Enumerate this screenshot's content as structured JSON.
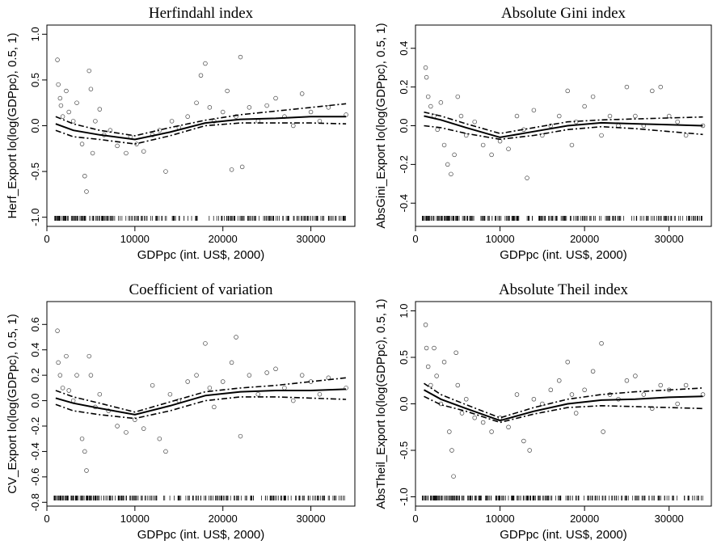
{
  "chart_data": [
    {
      "type": "scatter",
      "title": "Herfindahl index",
      "xlabel": "GDPpc (int. US$, 2000)",
      "ylabel": "Herf_Export lo(log(GDPpc), 0.5, 1)",
      "xlim": [
        0,
        35000
      ],
      "ylim": [
        -1.1,
        1.1
      ],
      "xticks": [
        0,
        10000,
        20000,
        30000
      ],
      "yticks": [
        -1.0,
        -0.5,
        0.0,
        0.5,
        1.0
      ],
      "ytick_labels": [
        "-1.0",
        "-0.5",
        "0.0",
        "0.5",
        "1.0"
      ],
      "series": [
        {
          "style": "solid-line",
          "x": [
            1000,
            3000,
            6000,
            10000,
            14000,
            18000,
            22000,
            26000,
            30000,
            34000
          ],
          "y": [
            0.02,
            -0.05,
            -0.1,
            -0.15,
            -0.07,
            0.03,
            0.07,
            0.08,
            0.1,
            0.1
          ]
        },
        {
          "style": "dashed-upper",
          "x": [
            1000,
            3000,
            6000,
            10000,
            14000,
            18000,
            22000,
            26000,
            30000,
            34000
          ],
          "y": [
            0.1,
            0.02,
            -0.05,
            -0.11,
            -0.02,
            0.06,
            0.12,
            0.16,
            0.2,
            0.24
          ]
        },
        {
          "style": "dashed-lower",
          "x": [
            1000,
            3000,
            6000,
            10000,
            14000,
            18000,
            22000,
            26000,
            30000,
            34000
          ],
          "y": [
            -0.05,
            -0.12,
            -0.15,
            -0.2,
            -0.11,
            0.0,
            0.03,
            0.03,
            0.03,
            0.02
          ]
        }
      ],
      "points": [
        [
          1200,
          0.72
        ],
        [
          1300,
          0.45
        ],
        [
          1500,
          0.3
        ],
        [
          1600,
          0.22
        ],
        [
          1800,
          0.1
        ],
        [
          2200,
          0.38
        ],
        [
          2500,
          0.15
        ],
        [
          3000,
          0.05
        ],
        [
          3400,
          0.25
        ],
        [
          4000,
          -0.2
        ],
        [
          4300,
          -0.55
        ],
        [
          4500,
          -0.72
        ],
        [
          4800,
          0.6
        ],
        [
          5000,
          0.4
        ],
        [
          5200,
          -0.3
        ],
        [
          5500,
          0.05
        ],
        [
          6000,
          0.18
        ],
        [
          6500,
          -0.1
        ],
        [
          7200,
          -0.05
        ],
        [
          8000,
          -0.22
        ],
        [
          9000,
          -0.3
        ],
        [
          9500,
          -0.12
        ],
        [
          10200,
          -0.2
        ],
        [
          11000,
          -0.28
        ],
        [
          12000,
          -0.1
        ],
        [
          12800,
          -0.05
        ],
        [
          13500,
          -0.5
        ],
        [
          14200,
          0.05
        ],
        [
          15000,
          -0.02
        ],
        [
          16000,
          0.1
        ],
        [
          17000,
          0.25
        ],
        [
          17500,
          0.55
        ],
        [
          18000,
          0.68
        ],
        [
          18500,
          0.2
        ],
        [
          19000,
          0.05
        ],
        [
          20000,
          0.15
        ],
        [
          20500,
          0.38
        ],
        [
          21000,
          -0.48
        ],
        [
          21500,
          0.1
        ],
        [
          22000,
          0.75
        ],
        [
          22200,
          -0.45
        ],
        [
          23000,
          0.2
        ],
        [
          24000,
          0.05
        ],
        [
          25000,
          0.22
        ],
        [
          26000,
          0.3
        ],
        [
          27000,
          0.1
        ],
        [
          28000,
          0.0
        ],
        [
          29000,
          0.35
        ],
        [
          30000,
          0.15
        ],
        [
          31000,
          0.05
        ],
        [
          32000,
          0.2
        ],
        [
          34000,
          0.12
        ]
      ],
      "rug": true
    },
    {
      "type": "scatter",
      "title": "Absolute Gini index",
      "xlabel": "GDPpc (int. US$, 2000)",
      "ylabel": "AbsGini_Export lo(log(GDPpc), 0.5, 1)",
      "xlim": [
        0,
        35000
      ],
      "ylim": [
        -0.52,
        0.52
      ],
      "xticks": [
        0,
        10000,
        20000,
        30000
      ],
      "yticks": [
        -0.4,
        -0.2,
        0.0,
        0.2,
        0.4
      ],
      "ytick_labels": [
        "-0.4",
        "-0.2",
        "0.0",
        "0.2",
        "0.4"
      ],
      "series": [
        {
          "style": "solid-line",
          "x": [
            1000,
            3000,
            6000,
            10000,
            14000,
            18000,
            22000,
            26000,
            30000,
            34000
          ],
          "y": [
            0.05,
            0.03,
            -0.01,
            -0.06,
            -0.03,
            0.0,
            0.015,
            0.01,
            0.005,
            0.0
          ]
        },
        {
          "style": "dashed-upper",
          "x": [
            1000,
            3000,
            6000,
            10000,
            14000,
            18000,
            22000,
            26000,
            30000,
            34000
          ],
          "y": [
            0.07,
            0.05,
            0.01,
            -0.04,
            -0.01,
            0.02,
            0.03,
            0.035,
            0.04,
            0.045
          ]
        },
        {
          "style": "dashed-lower",
          "x": [
            1000,
            3000,
            6000,
            10000,
            14000,
            18000,
            22000,
            26000,
            30000,
            34000
          ],
          "y": [
            0.0,
            -0.01,
            -0.04,
            -0.07,
            -0.05,
            -0.02,
            -0.005,
            -0.015,
            -0.03,
            -0.045
          ]
        }
      ],
      "points": [
        [
          1200,
          0.3
        ],
        [
          1300,
          0.25
        ],
        [
          1500,
          0.15
        ],
        [
          1800,
          0.1
        ],
        [
          2200,
          0.05
        ],
        [
          2600,
          -0.02
        ],
        [
          3000,
          0.12
        ],
        [
          3400,
          -0.1
        ],
        [
          3800,
          -0.2
        ],
        [
          4200,
          -0.25
        ],
        [
          4600,
          -0.15
        ],
        [
          5000,
          0.15
        ],
        [
          5400,
          0.05
        ],
        [
          6000,
          -0.05
        ],
        [
          7000,
          0.02
        ],
        [
          8000,
          -0.1
        ],
        [
          9000,
          -0.15
        ],
        [
          10000,
          -0.08
        ],
        [
          11000,
          -0.12
        ],
        [
          12000,
          0.05
        ],
        [
          12800,
          -0.02
        ],
        [
          13200,
          -0.27
        ],
        [
          14000,
          0.08
        ],
        [
          15000,
          -0.05
        ],
        [
          16000,
          0.0
        ],
        [
          17000,
          0.05
        ],
        [
          18000,
          0.18
        ],
        [
          18500,
          -0.1
        ],
        [
          19000,
          0.02
        ],
        [
          20000,
          0.1
        ],
        [
          21000,
          0.15
        ],
        [
          22000,
          -0.05
        ],
        [
          23000,
          0.05
        ],
        [
          24000,
          0.0
        ],
        [
          25000,
          0.2
        ],
        [
          26000,
          0.05
        ],
        [
          27000,
          0.0
        ],
        [
          28000,
          0.18
        ],
        [
          29000,
          0.2
        ],
        [
          30000,
          0.05
        ],
        [
          31000,
          0.02
        ],
        [
          32000,
          -0.05
        ],
        [
          34000,
          0.0
        ]
      ],
      "rug": true
    },
    {
      "type": "scatter",
      "title": "Coefficient of variation",
      "xlabel": "GDPpc (int. US$, 2000)",
      "ylabel": "CV_Export lo(log(GDPpc), 0.5, 1)",
      "xlim": [
        0,
        35000
      ],
      "ylim": [
        -0.83,
        0.78
      ],
      "xticks": [
        0,
        10000,
        20000,
        30000
      ],
      "yticks": [
        -0.8,
        -0.6,
        -0.4,
        -0.2,
        0.0,
        0.2,
        0.4,
        0.6
      ],
      "ytick_labels": [
        "-0.8",
        "-0.6",
        "-0.4",
        "-0.2",
        "0.0",
        "0.2",
        "0.4",
        "0.6"
      ],
      "series": [
        {
          "style": "solid-line",
          "x": [
            1000,
            3000,
            6000,
            10000,
            14000,
            18000,
            22000,
            26000,
            30000,
            34000
          ],
          "y": [
            0.02,
            -0.02,
            -0.06,
            -0.11,
            -0.04,
            0.04,
            0.07,
            0.08,
            0.08,
            0.09
          ]
        },
        {
          "style": "dashed-upper",
          "x": [
            1000,
            3000,
            6000,
            10000,
            14000,
            18000,
            22000,
            26000,
            30000,
            34000
          ],
          "y": [
            0.08,
            0.03,
            -0.02,
            -0.09,
            -0.01,
            0.07,
            0.1,
            0.12,
            0.15,
            0.18
          ]
        },
        {
          "style": "dashed-lower",
          "x": [
            1000,
            3000,
            6000,
            10000,
            14000,
            18000,
            22000,
            26000,
            30000,
            34000
          ],
          "y": [
            -0.03,
            -0.08,
            -0.11,
            -0.14,
            -0.08,
            0.0,
            0.03,
            0.03,
            0.02,
            0.01
          ]
        }
      ],
      "points": [
        [
          1200,
          0.55
        ],
        [
          1300,
          0.3
        ],
        [
          1500,
          0.2
        ],
        [
          1800,
          0.1
        ],
        [
          2200,
          0.35
        ],
        [
          2500,
          0.08
        ],
        [
          3000,
          0.0
        ],
        [
          3400,
          0.2
        ],
        [
          4000,
          -0.3
        ],
        [
          4300,
          -0.4
        ],
        [
          4500,
          -0.55
        ],
        [
          4800,
          0.35
        ],
        [
          5000,
          0.2
        ],
        [
          5500,
          -0.05
        ],
        [
          6000,
          0.05
        ],
        [
          7000,
          -0.08
        ],
        [
          8000,
          -0.2
        ],
        [
          9000,
          -0.25
        ],
        [
          10000,
          -0.15
        ],
        [
          11000,
          -0.22
        ],
        [
          12000,
          0.12
        ],
        [
          12800,
          -0.3
        ],
        [
          13500,
          -0.4
        ],
        [
          14000,
          0.05
        ],
        [
          15000,
          0.0
        ],
        [
          16000,
          0.15
        ],
        [
          17000,
          0.2
        ],
        [
          18000,
          0.45
        ],
        [
          18500,
          0.1
        ],
        [
          19000,
          -0.05
        ],
        [
          20000,
          0.15
        ],
        [
          21000,
          0.3
        ],
        [
          21500,
          0.5
        ],
        [
          22000,
          -0.28
        ],
        [
          23000,
          0.2
        ],
        [
          24000,
          0.05
        ],
        [
          25000,
          0.22
        ],
        [
          26000,
          0.25
        ],
        [
          27000,
          0.1
        ],
        [
          28000,
          0.0
        ],
        [
          29000,
          0.2
        ],
        [
          30000,
          0.15
        ],
        [
          31000,
          0.05
        ],
        [
          32000,
          0.18
        ],
        [
          34000,
          0.1
        ]
      ],
      "rug": true
    },
    {
      "type": "scatter",
      "title": "Absolute Theil  index",
      "xlabel": "GDPpc (int. US$, 2000)",
      "ylabel": "AbsTheil_Export lo(log(GDPpc), 0.5, 1)",
      "xlim": [
        0,
        35000
      ],
      "ylim": [
        -1.1,
        1.1
      ],
      "xticks": [
        0,
        10000,
        20000,
        30000
      ],
      "yticks": [
        -1.0,
        -0.5,
        0.0,
        0.5,
        1.0
      ],
      "ytick_labels": [
        "-1.0",
        "-0.5",
        "0.0",
        "0.5",
        "1.0"
      ],
      "series": [
        {
          "style": "solid-line",
          "x": [
            1000,
            3000,
            6000,
            10000,
            14000,
            18000,
            22000,
            26000,
            30000,
            34000
          ],
          "y": [
            0.15,
            0.05,
            -0.05,
            -0.18,
            -0.08,
            0.0,
            0.04,
            0.05,
            0.07,
            0.08
          ]
        },
        {
          "style": "dashed-upper",
          "x": [
            1000,
            3000,
            6000,
            10000,
            14000,
            18000,
            22000,
            26000,
            30000,
            34000
          ],
          "y": [
            0.22,
            0.1,
            -0.01,
            -0.15,
            -0.04,
            0.05,
            0.1,
            0.13,
            0.15,
            0.17
          ]
        },
        {
          "style": "dashed-lower",
          "x": [
            1000,
            3000,
            6000,
            10000,
            14000,
            18000,
            22000,
            26000,
            30000,
            34000
          ],
          "y": [
            0.08,
            -0.01,
            -0.08,
            -0.2,
            -0.11,
            -0.04,
            -0.02,
            -0.03,
            -0.04,
            -0.05
          ]
        }
      ],
      "points": [
        [
          1200,
          0.85
        ],
        [
          1300,
          0.6
        ],
        [
          1500,
          0.4
        ],
        [
          1800,
          0.2
        ],
        [
          2200,
          0.6
        ],
        [
          2500,
          0.3
        ],
        [
          3000,
          0.0
        ],
        [
          3400,
          0.45
        ],
        [
          4000,
          -0.3
        ],
        [
          4300,
          -0.5
        ],
        [
          4500,
          -0.78
        ],
        [
          4800,
          0.55
        ],
        [
          5000,
          0.2
        ],
        [
          5500,
          -0.1
        ],
        [
          6000,
          0.05
        ],
        [
          7000,
          -0.15
        ],
        [
          8000,
          -0.2
        ],
        [
          9000,
          -0.3
        ],
        [
          10000,
          -0.15
        ],
        [
          11000,
          -0.25
        ],
        [
          12000,
          0.1
        ],
        [
          12800,
          -0.4
        ],
        [
          13500,
          -0.5
        ],
        [
          14000,
          0.05
        ],
        [
          15000,
          0.0
        ],
        [
          16000,
          0.15
        ],
        [
          17000,
          0.25
        ],
        [
          18000,
          0.45
        ],
        [
          18500,
          0.1
        ],
        [
          19000,
          -0.1
        ],
        [
          20000,
          0.15
        ],
        [
          21000,
          0.35
        ],
        [
          22000,
          0.65
        ],
        [
          22200,
          -0.3
        ],
        [
          23000,
          0.1
        ],
        [
          24000,
          0.05
        ],
        [
          25000,
          0.25
        ],
        [
          26000,
          0.3
        ],
        [
          27000,
          0.1
        ],
        [
          28000,
          -0.05
        ],
        [
          29000,
          0.2
        ],
        [
          30000,
          0.15
        ],
        [
          31000,
          0.0
        ],
        [
          32000,
          0.2
        ],
        [
          34000,
          0.1
        ]
      ],
      "rug": true
    }
  ]
}
